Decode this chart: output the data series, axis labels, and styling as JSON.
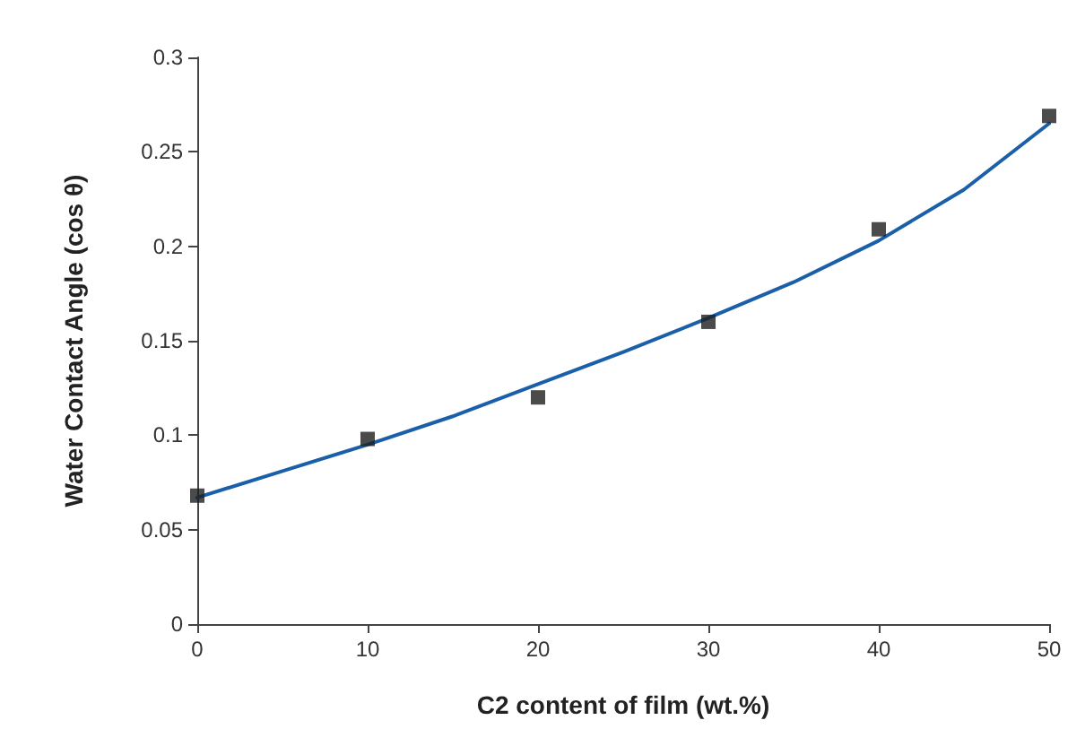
{
  "chart_data": {
    "type": "scatter",
    "xlabel": "C2 content of film (wt.%)",
    "ylabel": "Water Contact Angle (cos θ)",
    "xlim": [
      0,
      50
    ],
    "xticks": [
      0,
      10,
      20,
      30,
      40,
      50
    ],
    "ylim": [
      0,
      0.3
    ],
    "yticks": [
      0,
      0.05,
      0.1,
      0.15,
      0.2,
      0.25,
      0.3
    ],
    "grid": false,
    "series": [
      {
        "color": "#1e1e1e",
        "marker": "square",
        "x": [
          0,
          10,
          20,
          30,
          40,
          50
        ],
        "values": [
          0.068,
          0.098,
          0.12,
          0.16,
          0.209,
          0.269
        ]
      },
      {
        "type": "line",
        "color": "#1a5fa8",
        "marker": "none",
        "line_style": "solid",
        "x": [
          0,
          5,
          10,
          15,
          20,
          25,
          30,
          35,
          40,
          45,
          50
        ],
        "values": [
          0.067,
          0.081,
          0.095,
          0.11,
          0.127,
          0.144,
          0.162,
          0.181,
          0.203,
          0.23,
          0.265
        ]
      }
    ]
  }
}
